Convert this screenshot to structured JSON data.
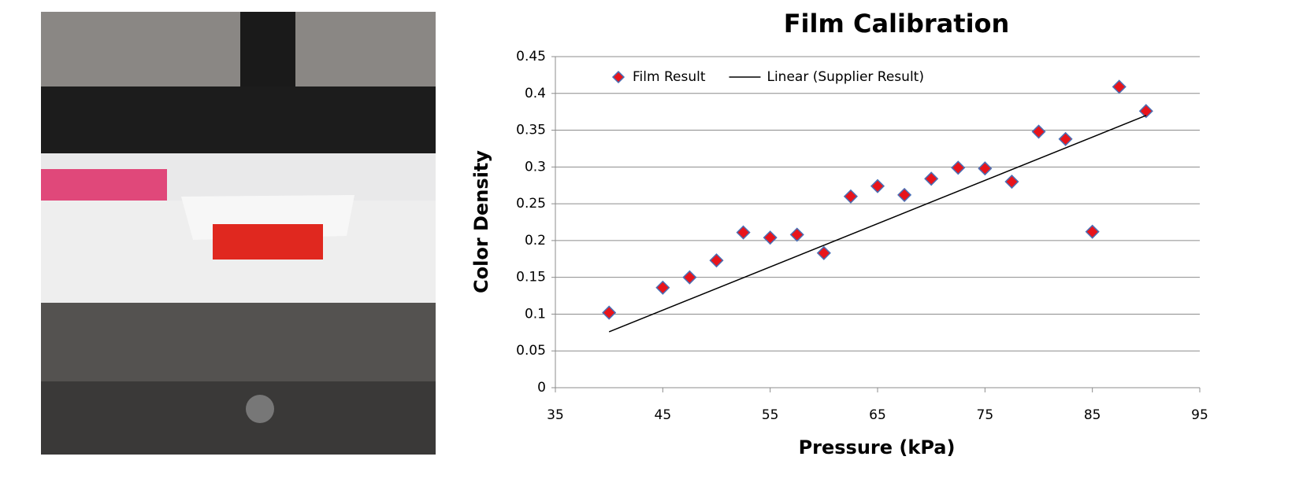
{
  "chart_data": {
    "type": "scatter",
    "title": "Film Calibration",
    "x_label": "Pressure (kPa)",
    "y_label": "Color Density",
    "xlim": [
      35,
      95
    ],
    "xticks": [
      35,
      45,
      55,
      65,
      75,
      85,
      95
    ],
    "ylim": [
      0,
      0.45
    ],
    "yticks": [
      0,
      0.05,
      0.1,
      0.15,
      0.2,
      0.25,
      0.3,
      0.35,
      0.4,
      0.45
    ],
    "grid": true,
    "legend": "top-left",
    "series": [
      {
        "name": "Film Result",
        "type": "scatter",
        "color": "#e8141b",
        "x": [
          40,
          45,
          47.5,
          50,
          52.5,
          55,
          57.5,
          60,
          62.5,
          65,
          67.5,
          70,
          72.5,
          75,
          77.5,
          80,
          82.5,
          85,
          87.5,
          90
        ],
        "values": [
          0.102,
          0.136,
          0.15,
          0.173,
          0.211,
          0.204,
          0.208,
          0.183,
          0.26,
          0.274,
          0.262,
          0.284,
          0.299,
          0.298,
          0.28,
          0.348,
          0.338,
          0.212,
          0.409,
          0.376
        ]
      },
      {
        "name": "Linear (Supplier Result)",
        "type": "line",
        "color": "#000000",
        "x": [
          40,
          90
        ],
        "values": [
          0.076,
          0.37
        ]
      }
    ]
  }
}
